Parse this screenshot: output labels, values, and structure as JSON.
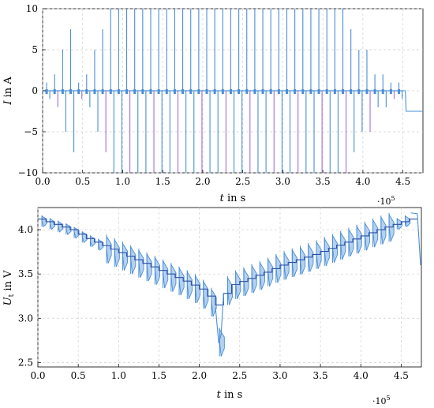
{
  "chart_data": [
    {
      "type": "line",
      "ylabel_var": "I",
      "ylabel_unit": "in A",
      "xlabel_var": "t",
      "xlabel_unit": "in s",
      "x_multiplier": "·10",
      "x_multiplier_exp": "5",
      "xlim": [
        0,
        4.75
      ],
      "ylim": [
        -10,
        10
      ],
      "xticks": [
        0.0,
        0.5,
        1.0,
        1.5,
        2.0,
        2.5,
        3.0,
        3.5,
        4.0,
        4.5
      ],
      "xtick_labels": [
        "0.0",
        "0.5",
        "1.0",
        "1.5",
        "2.0",
        "2.5",
        "3.0",
        "3.5",
        "4.0",
        "4.5"
      ],
      "yticks": [
        -10,
        -5,
        0,
        5,
        10
      ],
      "ytick_labels": [
        "−10",
        "−5",
        "0",
        "5",
        "10"
      ],
      "grid": true,
      "colors": {
        "line": "#4a8fd6",
        "accent": "#a36ed6"
      },
      "pulse_train": {
        "step": 0.1,
        "first": 0.05,
        "positive_peaks": [
          1,
          2,
          5,
          7.5,
          1,
          2,
          5,
          7.5,
          10,
          10,
          10,
          10,
          10,
          10,
          10,
          10,
          10,
          10,
          10,
          10,
          10,
          10,
          10,
          10,
          10,
          10,
          10,
          10,
          10,
          10,
          10,
          10,
          10,
          10,
          10,
          10,
          10,
          10,
          7.5,
          5,
          5,
          2,
          2,
          1,
          1
        ],
        "negative_peaks": [
          -1,
          -2,
          -5,
          -7.5,
          -1,
          -2,
          -5,
          -7.5,
          -10,
          -10,
          -10,
          -10,
          -10,
          -10,
          -10,
          -10,
          -10,
          -10,
          -10,
          -10,
          -10,
          -10,
          -10,
          -10,
          -10,
          -10,
          -10,
          -10,
          -10,
          -10,
          -10,
          -10,
          -10,
          -10,
          -10,
          -10,
          -10,
          -10,
          -7.5,
          -5,
          -5,
          -2,
          -2,
          -1,
          -1
        ],
        "end_value": -2.5
      }
    },
    {
      "type": "line",
      "ylabel_var": "U",
      "ylabel_sub": "t",
      "ylabel_unit": "in V",
      "xlabel_var": "t",
      "xlabel_unit": "in s",
      "x_multiplier": "·10",
      "x_multiplier_exp": "5",
      "xlim": [
        0,
        4.75
      ],
      "ylim": [
        2.45,
        4.25
      ],
      "xticks": [
        0.0,
        0.5,
        1.0,
        1.5,
        2.0,
        2.5,
        3.0,
        3.5,
        4.0,
        4.5
      ],
      "xtick_labels": [
        "0.0",
        "0.5",
        "1.0",
        "1.5",
        "2.0",
        "2.5",
        "3.0",
        "3.5",
        "4.0",
        "4.5"
      ],
      "yticks": [
        2.5,
        3.0,
        3.5,
        4.0
      ],
      "ytick_labels": [
        "2.5",
        "3.0",
        "3.5",
        "4.0"
      ],
      "grid": true,
      "colors": {
        "line": "#4a8fd6",
        "fill": "#8fb8e6",
        "baseline": "#2a4fa8"
      },
      "voltage_profile": {
        "x": [
          0.0,
          0.2,
          0.4,
          0.6,
          0.8,
          1.0,
          1.2,
          1.4,
          1.6,
          1.8,
          2.0,
          2.1,
          2.2,
          2.25,
          2.3,
          2.4,
          2.6,
          2.8,
          3.0,
          3.2,
          3.4,
          3.6,
          3.8,
          4.0,
          4.2,
          4.4,
          4.6,
          4.7
        ],
        "y": [
          4.12,
          4.06,
          4.0,
          3.9,
          3.82,
          3.74,
          3.66,
          3.58,
          3.5,
          3.42,
          3.33,
          3.25,
          3.15,
          2.75,
          3.28,
          3.38,
          3.45,
          3.52,
          3.6,
          3.66,
          3.72,
          3.79,
          3.86,
          3.93,
          4.0,
          4.06,
          4.12,
          4.18
        ],
        "pulse_step": 0.1,
        "end_value": 3.6
      }
    }
  ]
}
